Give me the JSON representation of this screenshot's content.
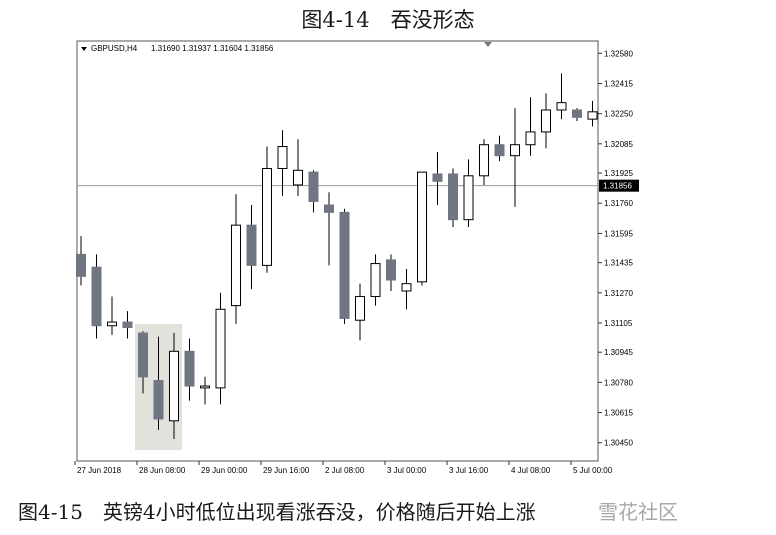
{
  "figure": {
    "title": "图4-14　吞没形态",
    "caption": "图4-15　英镑4小时低位出现看涨吞没，价格随后开始上涨",
    "watermark": "雪花社区"
  },
  "chart_data": {
    "type": "candlestick",
    "symbol_label": "GBPUSD,H4",
    "ohlc_label": "1.31690 1.31937 1.31604 1.31856",
    "last_price_label": "1.31856",
    "last_price": 1.31856,
    "ylim": [
      1.3035,
      1.3262
    ],
    "y_ticks": [
      "1.32580",
      "1.32415",
      "1.32250",
      "1.32085",
      "1.31925",
      "1.31760",
      "1.31595",
      "1.31435",
      "1.31270",
      "1.31105",
      "1.30945",
      "1.30780",
      "1.30615",
      "1.30450"
    ],
    "x_ticks": [
      {
        "index": 0,
        "label": "27 Jun 2018"
      },
      {
        "index": 4,
        "label": "28 Jun 08:00"
      },
      {
        "index": 8,
        "label": "29 Jun 00:00"
      },
      {
        "index": 12,
        "label": "29 Jun 16:00"
      },
      {
        "index": 16,
        "label": "2 Jul 08:00"
      },
      {
        "index": 20,
        "label": "3 Jul 00:00"
      },
      {
        "index": 24,
        "label": "3 Jul 16:00"
      },
      {
        "index": 28,
        "label": "4 Jul 08:00"
      },
      {
        "index": 32,
        "label": "5 Jul 00:00"
      }
    ],
    "highlight_range": [
      4,
      6
    ],
    "colors": {
      "bull": "#ffffff",
      "bear": "#6f7682",
      "outline": "#000000",
      "highlight": "#e2e2dc",
      "grid": "#9a9a9a"
    },
    "candles": [
      {
        "o": 1.3148,
        "h": 1.3158,
        "l": 1.3131,
        "c": 1.3136
      },
      {
        "o": 1.3141,
        "h": 1.3148,
        "l": 1.3102,
        "c": 1.3109
      },
      {
        "o": 1.3109,
        "h": 1.3125,
        "l": 1.3104,
        "c": 1.3111
      },
      {
        "o": 1.3111,
        "h": 1.3117,
        "l": 1.3102,
        "c": 1.3108
      },
      {
        "o": 1.3105,
        "h": 1.3106,
        "l": 1.3072,
        "c": 1.3081
      },
      {
        "o": 1.3079,
        "h": 1.3103,
        "l": 1.3052,
        "c": 1.3058
      },
      {
        "o": 1.3057,
        "h": 1.3105,
        "l": 1.3047,
        "c": 1.3095
      },
      {
        "o": 1.3095,
        "h": 1.3102,
        "l": 1.3068,
        "c": 1.3076
      },
      {
        "o": 1.3075,
        "h": 1.3081,
        "l": 1.3066,
        "c": 1.3076
      },
      {
        "o": 1.3075,
        "h": 1.3127,
        "l": 1.3066,
        "c": 1.3118
      },
      {
        "o": 1.312,
        "h": 1.3181,
        "l": 1.311,
        "c": 1.3164
      },
      {
        "o": 1.3164,
        "h": 1.3175,
        "l": 1.3129,
        "c": 1.3142
      },
      {
        "o": 1.3142,
        "h": 1.3207,
        "l": 1.3138,
        "c": 1.3195
      },
      {
        "o": 1.3195,
        "h": 1.3216,
        "l": 1.318,
        "c": 1.3207
      },
      {
        "o": 1.3186,
        "h": 1.3211,
        "l": 1.318,
        "c": 1.3194
      },
      {
        "o": 1.3193,
        "h": 1.3194,
        "l": 1.3171,
        "c": 1.3177
      },
      {
        "o": 1.3175,
        "h": 1.3182,
        "l": 1.3142,
        "c": 1.3171
      },
      {
        "o": 1.3171,
        "h": 1.3173,
        "l": 1.311,
        "c": 1.3113
      },
      {
        "o": 1.3112,
        "h": 1.3132,
        "l": 1.3101,
        "c": 1.3125
      },
      {
        "o": 1.3125,
        "h": 1.3148,
        "l": 1.312,
        "c": 1.3143
      },
      {
        "o": 1.3145,
        "h": 1.3148,
        "l": 1.3128,
        "c": 1.3134
      },
      {
        "o": 1.3128,
        "h": 1.314,
        "l": 1.3118,
        "c": 1.3132
      },
      {
        "o": 1.3133,
        "h": 1.3193,
        "l": 1.3131,
        "c": 1.3193
      },
      {
        "o": 1.3192,
        "h": 1.3204,
        "l": 1.3175,
        "c": 1.3188
      },
      {
        "o": 1.3192,
        "h": 1.3195,
        "l": 1.3163,
        "c": 1.3167
      },
      {
        "o": 1.3167,
        "h": 1.32,
        "l": 1.3163,
        "c": 1.3191
      },
      {
        "o": 1.3191,
        "h": 1.3211,
        "l": 1.3186,
        "c": 1.3208
      },
      {
        "o": 1.3208,
        "h": 1.3213,
        "l": 1.3199,
        "c": 1.3202
      },
      {
        "o": 1.3202,
        "h": 1.3228,
        "l": 1.3174,
        "c": 1.3208
      },
      {
        "o": 1.3208,
        "h": 1.3234,
        "l": 1.3202,
        "c": 1.3215
      },
      {
        "o": 1.3215,
        "h": 1.3236,
        "l": 1.3206,
        "c": 1.3227
      },
      {
        "o": 1.3227,
        "h": 1.3247,
        "l": 1.3222,
        "c": 1.3231
      },
      {
        "o": 1.3227,
        "h": 1.3228,
        "l": 1.3221,
        "c": 1.3223
      },
      {
        "o": 1.3222,
        "h": 1.3232,
        "l": 1.3218,
        "c": 1.3226
      }
    ]
  }
}
